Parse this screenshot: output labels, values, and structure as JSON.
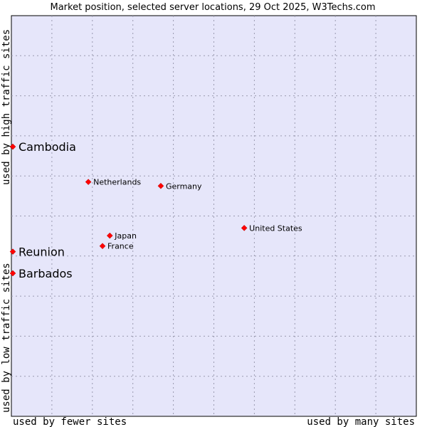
{
  "chart_data": {
    "type": "scatter",
    "title": "Market position, selected server locations, 29 Oct 2025, W3Techs.com",
    "xlabel_left": "used by fewer sites",
    "xlabel_right": "used by many sites",
    "ylabel_bottom": "used by low traffic sites",
    "ylabel_top": "used by high traffic sites",
    "xlim": [
      0,
      100
    ],
    "ylim": [
      0,
      100
    ],
    "grid": true,
    "colors": {
      "plot_background": "#e6e6fa",
      "point": "#ff0000",
      "grid": "#9a9ab0",
      "border": "#000000"
    },
    "points": [
      {
        "label": "Cambodia",
        "x": 0.2,
        "y": 67.3,
        "emphasis": true
      },
      {
        "label": "Reunion",
        "x": 0.0,
        "y": 41.1,
        "emphasis": true
      },
      {
        "label": "Barbados",
        "x": 0.0,
        "y": 35.7,
        "emphasis": true
      },
      {
        "label": "Netherlands",
        "x": 19.0,
        "y": 58.5,
        "emphasis": false
      },
      {
        "label": "Germany",
        "x": 36.9,
        "y": 57.5,
        "emphasis": false
      },
      {
        "label": "United States",
        "x": 57.5,
        "y": 47.0,
        "emphasis": false
      },
      {
        "label": "Japan",
        "x": 24.3,
        "y": 45.1,
        "emphasis": false
      },
      {
        "label": "France",
        "x": 22.5,
        "y": 42.5,
        "emphasis": false
      }
    ]
  }
}
